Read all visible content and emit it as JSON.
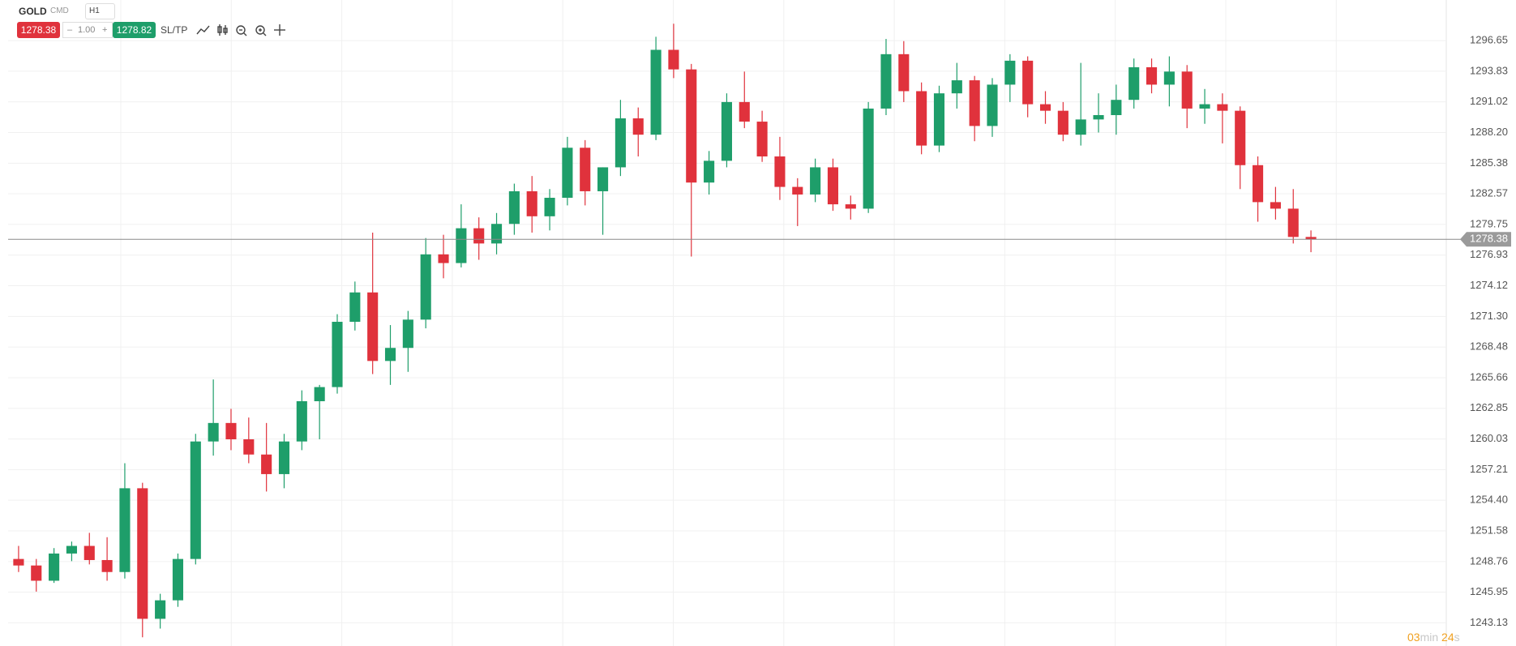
{
  "toolbar": {
    "symbol": "GOLD",
    "market": "CMD",
    "timeframe": "H1",
    "sell_price": "1278.38",
    "minus": "–",
    "quantity": "1.00",
    "plus": "+",
    "buy_price": "1278.82",
    "sltp": "SL/TP"
  },
  "chart_data": {
    "type": "candlestick",
    "up_color": "#1e9e6a",
    "down_color": "#e0323c",
    "grid": true,
    "ylim": [
      1241.0,
      1300.38
    ],
    "yticks": [
      1296.65,
      1293.83,
      1291.02,
      {
        "value": 1288.2,
        "label": "1288.20"
      },
      1285.38,
      1282.57,
      1279.75,
      1276.93,
      1274.12,
      {
        "value": 1271.3,
        "label": "1271.30"
      },
      1268.48,
      1265.66,
      1262.85,
      1260.03,
      1257.21,
      {
        "value": 1254.4,
        "label": "1254.40"
      },
      1251.58,
      1248.76,
      1245.95,
      1243.13
    ],
    "last_price": 1278.38,
    "ohlc": [
      [
        1249.0,
        1250.2,
        1247.8,
        1248.4
      ],
      [
        1248.4,
        1249.0,
        1246.0,
        1247.0
      ],
      [
        1247.0,
        1250.0,
        1246.8,
        1249.5
      ],
      [
        1249.5,
        1250.6,
        1248.8,
        1250.2
      ],
      [
        1250.2,
        1251.4,
        1248.5,
        1248.9
      ],
      [
        1248.9,
        1251.0,
        1247.0,
        1247.8
      ],
      [
        1247.8,
        1257.8,
        1247.2,
        1255.5
      ],
      [
        1255.5,
        1256.0,
        1241.8,
        1243.5
      ],
      [
        1243.5,
        1245.8,
        1242.6,
        1245.2
      ],
      [
        1245.2,
        1249.5,
        1244.6,
        1249.0
      ],
      [
        1249.0,
        1260.5,
        1248.5,
        1259.8
      ],
      [
        1259.8,
        1265.5,
        1258.5,
        1261.5
      ],
      [
        1261.5,
        1262.8,
        1259.0,
        1260.0
      ],
      [
        1260.0,
        1262.0,
        1257.8,
        1258.6
      ],
      [
        1258.6,
        1261.5,
        1255.2,
        1256.8
      ],
      [
        1256.8,
        1260.5,
        1255.5,
        1259.8
      ],
      [
        1259.8,
        1264.5,
        1259.0,
        1263.5
      ],
      [
        1263.5,
        1265.0,
        1260.0,
        1264.8
      ],
      [
        1264.8,
        1271.5,
        1264.2,
        1270.8
      ],
      [
        1270.8,
        1274.5,
        1270.0,
        1273.5
      ],
      [
        1273.5,
        1279.0,
        1266.0,
        1267.2
      ],
      [
        1267.2,
        1270.5,
        1265.0,
        1268.4
      ],
      [
        1268.4,
        1271.8,
        1266.2,
        1271.0
      ],
      [
        1271.0,
        1278.5,
        1270.2,
        1277.0
      ],
      [
        1277.0,
        1278.8,
        1274.8,
        1276.2
      ],
      [
        1276.2,
        1281.6,
        1275.8,
        1279.4
      ],
      [
        1279.4,
        1280.4,
        1276.5,
        1278.0
      ],
      [
        1278.0,
        1280.8,
        1277.0,
        1279.8
      ],
      [
        1279.8,
        1283.5,
        1278.8,
        1282.8
      ],
      [
        1282.8,
        1284.2,
        1279.0,
        1280.5
      ],
      [
        1280.5,
        1283.0,
        1279.2,
        1282.2
      ],
      [
        1282.2,
        1287.8,
        1281.5,
        1286.8
      ],
      [
        1286.8,
        1287.5,
        1281.5,
        1282.8
      ],
      [
        1282.8,
        1285.0,
        1278.8,
        1285.0
      ],
      [
        1285.0,
        1291.2,
        1284.2,
        1289.5
      ],
      [
        1289.5,
        1290.5,
        1286.0,
        1288.0
      ],
      [
        1288.0,
        1297.0,
        1287.5,
        1295.8
      ],
      [
        1295.8,
        1298.2,
        1293.2,
        1294.0
      ],
      [
        1294.0,
        1294.5,
        1276.8,
        1283.6
      ],
      [
        1283.6,
        1286.5,
        1282.5,
        1285.6
      ],
      [
        1285.6,
        1291.8,
        1285.0,
        1291.0
      ],
      [
        1291.0,
        1293.8,
        1288.6,
        1289.2
      ],
      [
        1289.2,
        1290.2,
        1285.5,
        1286.0
      ],
      [
        1286.0,
        1287.8,
        1282.0,
        1283.2
      ],
      [
        1283.2,
        1284.0,
        1279.6,
        1282.5
      ],
      [
        1282.5,
        1285.8,
        1281.8,
        1285.0
      ],
      [
        1285.0,
        1285.8,
        1281.0,
        1281.6
      ],
      [
        1281.6,
        1282.4,
        1280.2,
        1281.2
      ],
      [
        1281.2,
        1291.0,
        1280.8,
        1290.4
      ],
      [
        1290.4,
        1296.8,
        1289.8,
        1295.4
      ],
      [
        1295.4,
        1296.6,
        1291.0,
        1292.0
      ],
      [
        1292.0,
        1292.8,
        1286.2,
        1287.0
      ],
      [
        1287.0,
        1292.5,
        1286.4,
        1291.8
      ],
      [
        1291.8,
        1294.6,
        1290.4,
        1293.0
      ],
      [
        1293.0,
        1293.4,
        1287.4,
        1288.8
      ],
      [
        1288.8,
        1293.2,
        1287.8,
        1292.6
      ],
      [
        1292.6,
        1295.4,
        1291.0,
        1294.8
      ],
      [
        1294.8,
        1295.2,
        1289.6,
        1290.8
      ],
      [
        1290.8,
        1292.0,
        1289.0,
        1290.2
      ],
      [
        1290.2,
        1291.0,
        1287.4,
        1288.0
      ],
      [
        1288.0,
        1294.6,
        1287.0,
        1289.4
      ],
      [
        1289.4,
        1291.8,
        1288.2,
        1289.8
      ],
      [
        1289.8,
        1292.6,
        1288.0,
        1291.2
      ],
      [
        1291.2,
        1295.0,
        1290.4,
        1294.2
      ],
      [
        1294.2,
        1295.0,
        1291.8,
        1292.6
      ],
      [
        1292.6,
        1295.2,
        1290.6,
        1293.8
      ],
      [
        1293.8,
        1294.4,
        1288.6,
        1290.4
      ],
      [
        1290.4,
        1292.2,
        1289.0,
        1290.8
      ],
      [
        1290.8,
        1291.8,
        1287.2,
        1290.2
      ],
      [
        1290.2,
        1290.6,
        1283.0,
        1285.2
      ],
      [
        1285.2,
        1286.0,
        1280.0,
        1281.8
      ],
      [
        1281.8,
        1283.2,
        1280.2,
        1281.2
      ],
      [
        1281.2,
        1283.0,
        1278.0,
        1278.6
      ],
      [
        1278.6,
        1279.2,
        1277.2,
        1278.38
      ]
    ]
  },
  "timer": {
    "minutes": "03",
    "minutes_unit": "min",
    "seconds": "24",
    "seconds_unit": "s"
  }
}
